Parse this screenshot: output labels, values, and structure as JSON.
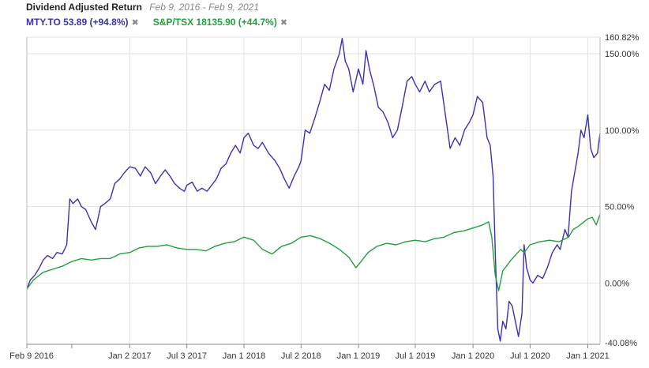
{
  "header": {
    "title": "Dividend Adjusted Return",
    "date_range": "Feb 9, 2016 - Feb 9, 2021"
  },
  "legend": [
    {
      "label": "MTY.TO 53.89 (+94.8%)",
      "color": "#3a32b4",
      "close_icon": "close-icon"
    },
    {
      "label": "S&P/TSX 18135.90 (+44.7%)",
      "color": "#22a03c",
      "close_icon": "close-icon"
    }
  ],
  "chart_data": {
    "type": "line",
    "x_ticks": [
      "Feb 9 2016",
      "Jan 2 2017",
      "Jul 3 2017",
      "Jan 1 2018",
      "Jul 2 2018",
      "Jan 1 2019",
      "Jul 1 2019",
      "Jan 1 2020",
      "Jul 1 2020",
      "Jan 1 2021"
    ],
    "y_ticks": [
      "160.82%",
      "150.00%",
      "100.00%",
      "50.00%",
      "0.00%",
      "-40.08%"
    ],
    "ylim": [
      -40.08,
      160.82
    ],
    "xlim": [
      "2016-02-09",
      "2021-02-09"
    ],
    "grid": true,
    "y_axis_side": "right",
    "series": [
      {
        "name": "MTY.TO",
        "color": "#3a32b4",
        "points": [
          [
            "2016-02-09",
            -4
          ],
          [
            "2016-02-20",
            2
          ],
          [
            "2016-03-05",
            5
          ],
          [
            "2016-03-20",
            10
          ],
          [
            "2016-04-01",
            15
          ],
          [
            "2016-04-15",
            18
          ],
          [
            "2016-05-01",
            16
          ],
          [
            "2016-05-15",
            20
          ],
          [
            "2016-06-01",
            19
          ],
          [
            "2016-06-15",
            25
          ],
          [
            "2016-06-25",
            55
          ],
          [
            "2016-07-05",
            52
          ],
          [
            "2016-07-20",
            55
          ],
          [
            "2016-08-01",
            50
          ],
          [
            "2016-08-15",
            48
          ],
          [
            "2016-09-01",
            40
          ],
          [
            "2016-09-15",
            35
          ],
          [
            "2016-10-01",
            50
          ],
          [
            "2016-10-15",
            52
          ],
          [
            "2016-11-01",
            55
          ],
          [
            "2016-11-15",
            65
          ],
          [
            "2016-12-01",
            68
          ],
          [
            "2016-12-15",
            72
          ],
          [
            "2017-01-02",
            76
          ],
          [
            "2017-01-20",
            75
          ],
          [
            "2017-02-05",
            70
          ],
          [
            "2017-02-20",
            76
          ],
          [
            "2017-03-10",
            72
          ],
          [
            "2017-03-25",
            65
          ],
          [
            "2017-04-10",
            70
          ],
          [
            "2017-04-25",
            74
          ],
          [
            "2017-05-10",
            70
          ],
          [
            "2017-05-25",
            65
          ],
          [
            "2017-06-10",
            62
          ],
          [
            "2017-06-25",
            60
          ],
          [
            "2017-07-03",
            64
          ],
          [
            "2017-07-20",
            66
          ],
          [
            "2017-08-05",
            60
          ],
          [
            "2017-08-20",
            62
          ],
          [
            "2017-09-05",
            60
          ],
          [
            "2017-09-20",
            64
          ],
          [
            "2017-10-05",
            68
          ],
          [
            "2017-10-20",
            75
          ],
          [
            "2017-11-05",
            78
          ],
          [
            "2017-11-20",
            85
          ],
          [
            "2017-12-05",
            90
          ],
          [
            "2017-12-20",
            85
          ],
          [
            "2018-01-01",
            95
          ],
          [
            "2018-01-15",
            98
          ],
          [
            "2018-02-01",
            90
          ],
          [
            "2018-02-15",
            88
          ],
          [
            "2018-03-01",
            92
          ],
          [
            "2018-03-20",
            85
          ],
          [
            "2018-04-10",
            80
          ],
          [
            "2018-04-25",
            75
          ],
          [
            "2018-05-10",
            68
          ],
          [
            "2018-05-25",
            62
          ],
          [
            "2018-06-10",
            70
          ],
          [
            "2018-06-25",
            76
          ],
          [
            "2018-07-02",
            80
          ],
          [
            "2018-07-15",
            100
          ],
          [
            "2018-07-30",
            98
          ],
          [
            "2018-08-15",
            108
          ],
          [
            "2018-08-30",
            118
          ],
          [
            "2018-09-15",
            130
          ],
          [
            "2018-09-30",
            126
          ],
          [
            "2018-10-15",
            140
          ],
          [
            "2018-11-01",
            150
          ],
          [
            "2018-11-10",
            160
          ],
          [
            "2018-11-20",
            145
          ],
          [
            "2018-12-01",
            140
          ],
          [
            "2018-12-15",
            125
          ],
          [
            "2019-01-01",
            140
          ],
          [
            "2019-01-15",
            130
          ],
          [
            "2019-01-25",
            152
          ],
          [
            "2019-02-05",
            140
          ],
          [
            "2019-02-20",
            128
          ],
          [
            "2019-03-05",
            115
          ],
          [
            "2019-03-20",
            112
          ],
          [
            "2019-04-05",
            105
          ],
          [
            "2019-04-20",
            95
          ],
          [
            "2019-05-05",
            100
          ],
          [
            "2019-05-20",
            115
          ],
          [
            "2019-06-05",
            132
          ],
          [
            "2019-06-20",
            135
          ],
          [
            "2019-07-01",
            130
          ],
          [
            "2019-07-15",
            125
          ],
          [
            "2019-08-01",
            132
          ],
          [
            "2019-08-15",
            125
          ],
          [
            "2019-09-01",
            130
          ],
          [
            "2019-09-20",
            132
          ],
          [
            "2019-10-05",
            110
          ],
          [
            "2019-10-20",
            88
          ],
          [
            "2019-11-05",
            95
          ],
          [
            "2019-11-20",
            90
          ],
          [
            "2019-12-05",
            100
          ],
          [
            "2019-12-20",
            105
          ],
          [
            "2020-01-01",
            110
          ],
          [
            "2020-01-15",
            122
          ],
          [
            "2020-02-01",
            118
          ],
          [
            "2020-02-15",
            95
          ],
          [
            "2020-02-25",
            90
          ],
          [
            "2020-03-05",
            70
          ],
          [
            "2020-03-12",
            20
          ],
          [
            "2020-03-20",
            -30
          ],
          [
            "2020-03-28",
            -38
          ],
          [
            "2020-04-05",
            -25
          ],
          [
            "2020-04-15",
            -30
          ],
          [
            "2020-04-25",
            -12
          ],
          [
            "2020-05-05",
            -15
          ],
          [
            "2020-05-15",
            -25
          ],
          [
            "2020-05-25",
            -35
          ],
          [
            "2020-06-05",
            -20
          ],
          [
            "2020-06-12",
            25
          ],
          [
            "2020-06-20",
            10
          ],
          [
            "2020-07-01",
            2
          ],
          [
            "2020-07-10",
            0
          ],
          [
            "2020-07-25",
            5
          ],
          [
            "2020-08-10",
            3
          ],
          [
            "2020-08-25",
            10
          ],
          [
            "2020-09-10",
            20
          ],
          [
            "2020-09-25",
            25
          ],
          [
            "2020-10-05",
            22
          ],
          [
            "2020-10-20",
            35
          ],
          [
            "2020-10-30",
            30
          ],
          [
            "2020-11-10",
            60
          ],
          [
            "2020-11-20",
            72
          ],
          [
            "2020-12-01",
            85
          ],
          [
            "2020-12-10",
            100
          ],
          [
            "2020-12-20",
            95
          ],
          [
            "2021-01-01",
            110
          ],
          [
            "2021-01-10",
            88
          ],
          [
            "2021-01-20",
            82
          ],
          [
            "2021-02-01",
            85
          ],
          [
            "2021-02-09",
            98
          ]
        ]
      },
      {
        "name": "S&P/TSX",
        "color": "#22a03c",
        "points": [
          [
            "2016-02-09",
            -4
          ],
          [
            "2016-03-01",
            2
          ],
          [
            "2016-04-01",
            7
          ],
          [
            "2016-05-01",
            9
          ],
          [
            "2016-06-01",
            11
          ],
          [
            "2016-07-01",
            14
          ],
          [
            "2016-08-01",
            16
          ],
          [
            "2016-09-01",
            15
          ],
          [
            "2016-10-01",
            16
          ],
          [
            "2016-11-01",
            16
          ],
          [
            "2016-12-01",
            19
          ],
          [
            "2017-01-02",
            20
          ],
          [
            "2017-02-01",
            23
          ],
          [
            "2017-03-01",
            24
          ],
          [
            "2017-04-01",
            24
          ],
          [
            "2017-05-01",
            25
          ],
          [
            "2017-06-01",
            23
          ],
          [
            "2017-07-03",
            22
          ],
          [
            "2017-08-01",
            22
          ],
          [
            "2017-09-01",
            21
          ],
          [
            "2017-10-01",
            24
          ],
          [
            "2017-11-01",
            26
          ],
          [
            "2017-12-01",
            27
          ],
          [
            "2018-01-01",
            30
          ],
          [
            "2018-02-01",
            28
          ],
          [
            "2018-03-01",
            22
          ],
          [
            "2018-04-01",
            19
          ],
          [
            "2018-05-01",
            24
          ],
          [
            "2018-06-01",
            26
          ],
          [
            "2018-07-02",
            30
          ],
          [
            "2018-08-01",
            31
          ],
          [
            "2018-09-01",
            29
          ],
          [
            "2018-10-01",
            26
          ],
          [
            "2018-11-01",
            22
          ],
          [
            "2018-12-01",
            17
          ],
          [
            "2018-12-24",
            10
          ],
          [
            "2019-01-01",
            12
          ],
          [
            "2019-02-01",
            20
          ],
          [
            "2019-03-01",
            24
          ],
          [
            "2019-04-01",
            26
          ],
          [
            "2019-05-01",
            25
          ],
          [
            "2019-06-01",
            27
          ],
          [
            "2019-07-01",
            28
          ],
          [
            "2019-08-01",
            27
          ],
          [
            "2019-09-01",
            29
          ],
          [
            "2019-10-01",
            30
          ],
          [
            "2019-11-01",
            33
          ],
          [
            "2019-12-01",
            34
          ],
          [
            "2020-01-01",
            36
          ],
          [
            "2020-02-01",
            38
          ],
          [
            "2020-02-20",
            40
          ],
          [
            "2020-03-01",
            30
          ],
          [
            "2020-03-12",
            5
          ],
          [
            "2020-03-23",
            -5
          ],
          [
            "2020-04-05",
            8
          ],
          [
            "2020-04-20",
            12
          ],
          [
            "2020-05-01",
            15
          ],
          [
            "2020-06-01",
            22
          ],
          [
            "2020-06-12",
            20
          ],
          [
            "2020-07-01",
            25
          ],
          [
            "2020-08-01",
            27
          ],
          [
            "2020-09-01",
            28
          ],
          [
            "2020-10-01",
            27
          ],
          [
            "2020-11-01",
            30
          ],
          [
            "2020-11-15",
            35
          ],
          [
            "2020-12-01",
            37
          ],
          [
            "2020-12-20",
            40
          ],
          [
            "2021-01-01",
            42
          ],
          [
            "2021-01-15",
            43
          ],
          [
            "2021-01-28",
            38
          ],
          [
            "2021-02-09",
            45
          ]
        ]
      }
    ]
  }
}
